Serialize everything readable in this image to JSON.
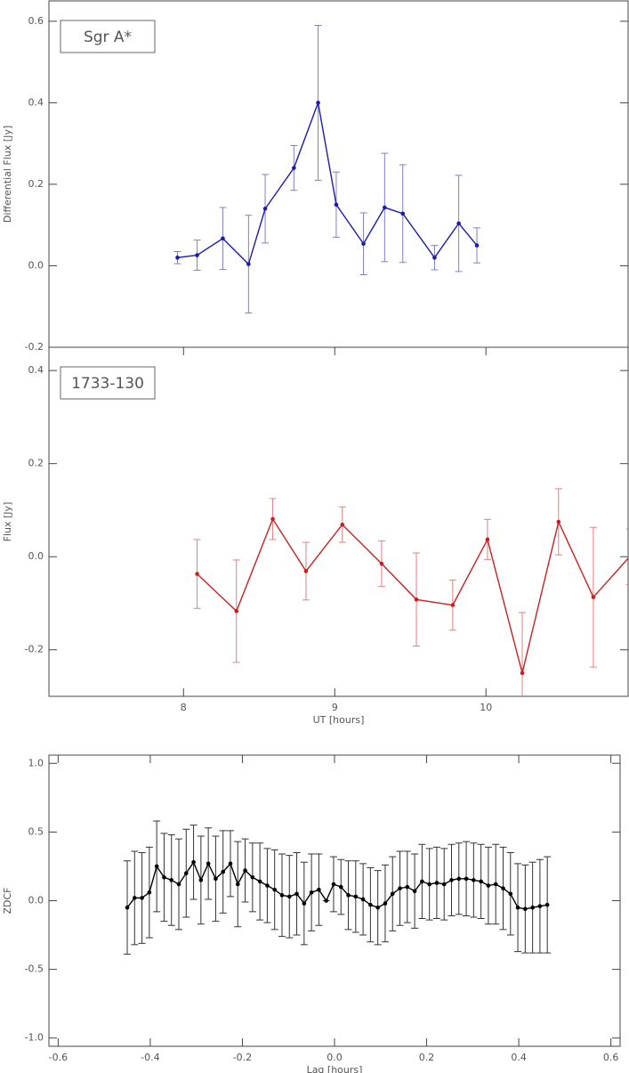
{
  "chart_data": [
    {
      "type": "line",
      "annotation": "Sgr A*",
      "ylabel": "Differential Flux [Jy]",
      "x": [
        7.96,
        8.09,
        8.26,
        8.43,
        8.54,
        8.73,
        8.89,
        9.01,
        9.19,
        9.33,
        9.45,
        9.66,
        9.82,
        9.94
      ],
      "series": [
        {
          "color": "#1c1ca8",
          "error_color": "#8080c8",
          "values": [
            0.02,
            0.026,
            0.067,
            0.004,
            0.14,
            0.24,
            0.4,
            0.15,
            0.054,
            0.143,
            0.128,
            0.02,
            0.104,
            0.05
          ],
          "errors": [
            0.015,
            0.037,
            0.076,
            0.12,
            0.084,
            0.055,
            0.19,
            0.08,
            0.076,
            0.133,
            0.12,
            0.03,
            0.118,
            0.043
          ]
        }
      ],
      "xlim": [
        7.11,
        10.94
      ],
      "ylim": [
        -0.2,
        0.65
      ],
      "yticks": [
        {
          "value": -0.2,
          "label": "-0.2"
        },
        {
          "value": 0,
          "label": "0.0"
        },
        0.2,
        0.4,
        0.6
      ]
    },
    {
      "type": "line",
      "annotation": "1733-130",
      "ylabel": "Flux [Jy]",
      "xlabel": "UT [hours]",
      "x": [
        8.09,
        8.35,
        8.59,
        8.81,
        9.05,
        9.31,
        9.54,
        9.78,
        10.01,
        10.24,
        10.48,
        10.71,
        10.95
      ],
      "series": [
        {
          "color": "#c82020",
          "error_color": "#e08080",
          "values": [
            -0.037,
            -0.117,
            0.081,
            -0.031,
            0.069,
            -0.015,
            -0.092,
            -0.104,
            0.037,
            -0.25,
            0.075,
            -0.087,
            0.0
          ],
          "errors": [
            0.074,
            0.11,
            0.044,
            0.062,
            0.038,
            0.049,
            0.1,
            0.054,
            0.043,
            0.13,
            0.071,
            0.15,
            0.06
          ]
        }
      ],
      "xlim": [
        7.11,
        10.94
      ],
      "ylim": [
        -0.3,
        0.45
      ],
      "xticks": [
        8,
        9,
        10
      ],
      "yticks": [
        {
          "value": -0.2,
          "label": "-0.2"
        },
        {
          "value": 0,
          "label": "0.0"
        },
        0.2,
        0.4
      ]
    },
    {
      "type": "line",
      "ylabel": "ZDCF",
      "xlabel": "Lag [hours]",
      "x": [
        -0.45,
        -0.434,
        -0.418,
        -0.402,
        -0.386,
        -0.37,
        -0.354,
        -0.338,
        -0.322,
        -0.306,
        -0.29,
        -0.274,
        -0.258,
        -0.242,
        -0.226,
        -0.21,
        -0.194,
        -0.178,
        -0.162,
        -0.146,
        -0.13,
        -0.114,
        -0.098,
        -0.082,
        -0.066,
        -0.05,
        -0.034,
        -0.018,
        -0.002,
        0.014,
        0.03,
        0.046,
        0.062,
        0.078,
        0.094,
        0.11,
        0.126,
        0.142,
        0.158,
        0.174,
        0.19,
        0.206,
        0.222,
        0.238,
        0.254,
        0.27,
        0.286,
        0.302,
        0.318,
        0.334,
        0.35,
        0.366,
        0.382,
        0.398,
        0.414,
        0.43,
        0.446,
        0.462
      ],
      "series": [
        {
          "color": "#000000",
          "error_color": "#333333",
          "values": [
            -0.05,
            0.02,
            0.02,
            0.06,
            0.25,
            0.17,
            0.15,
            0.12,
            0.2,
            0.28,
            0.15,
            0.27,
            0.16,
            0.21,
            0.27,
            0.12,
            0.22,
            0.17,
            0.14,
            0.11,
            0.08,
            0.04,
            0.03,
            0.05,
            -0.02,
            0.06,
            0.08,
            0.0,
            0.12,
            0.1,
            0.04,
            0.03,
            0.01,
            -0.03,
            -0.05,
            -0.02,
            0.05,
            0.09,
            0.1,
            0.07,
            0.14,
            0.12,
            0.13,
            0.12,
            0.15,
            0.16,
            0.16,
            0.15,
            0.14,
            0.11,
            0.12,
            0.09,
            0.05,
            -0.05,
            -0.06,
            -0.05,
            -0.04,
            -0.03
          ],
          "errors": [
            0.34,
            0.34,
            0.33,
            0.33,
            0.33,
            0.32,
            0.33,
            0.33,
            0.32,
            0.27,
            0.32,
            0.26,
            0.31,
            0.3,
            0.24,
            0.31,
            0.23,
            0.25,
            0.28,
            0.27,
            0.29,
            0.3,
            0.3,
            0.3,
            0.3,
            0.28,
            0.26,
            0,
            0.2,
            0.2,
            0.25,
            0.26,
            0.26,
            0.27,
            0.27,
            0.28,
            0.27,
            0.27,
            0.26,
            0.27,
            0.27,
            0.26,
            0.26,
            0.26,
            0.26,
            0.26,
            0.27,
            0.27,
            0.27,
            0.28,
            0.29,
            0.3,
            0.3,
            0.32,
            0.32,
            0.33,
            0.34,
            0.35
          ]
        }
      ],
      "xlim": [
        -0.62,
        0.62
      ],
      "ylim": [
        -1.06,
        1.06
      ],
      "xticks": [
        -0.6,
        -0.4,
        -0.2,
        {
          "value": 0,
          "label": "0.0"
        },
        0.2,
        0.4,
        0.6
      ],
      "yticks": [
        {
          "value": -1,
          "label": "-1.0"
        },
        -0.5,
        {
          "value": 0,
          "label": "0.0"
        },
        0.5,
        {
          "value": 1,
          "label": "1.0"
        }
      ]
    }
  ]
}
